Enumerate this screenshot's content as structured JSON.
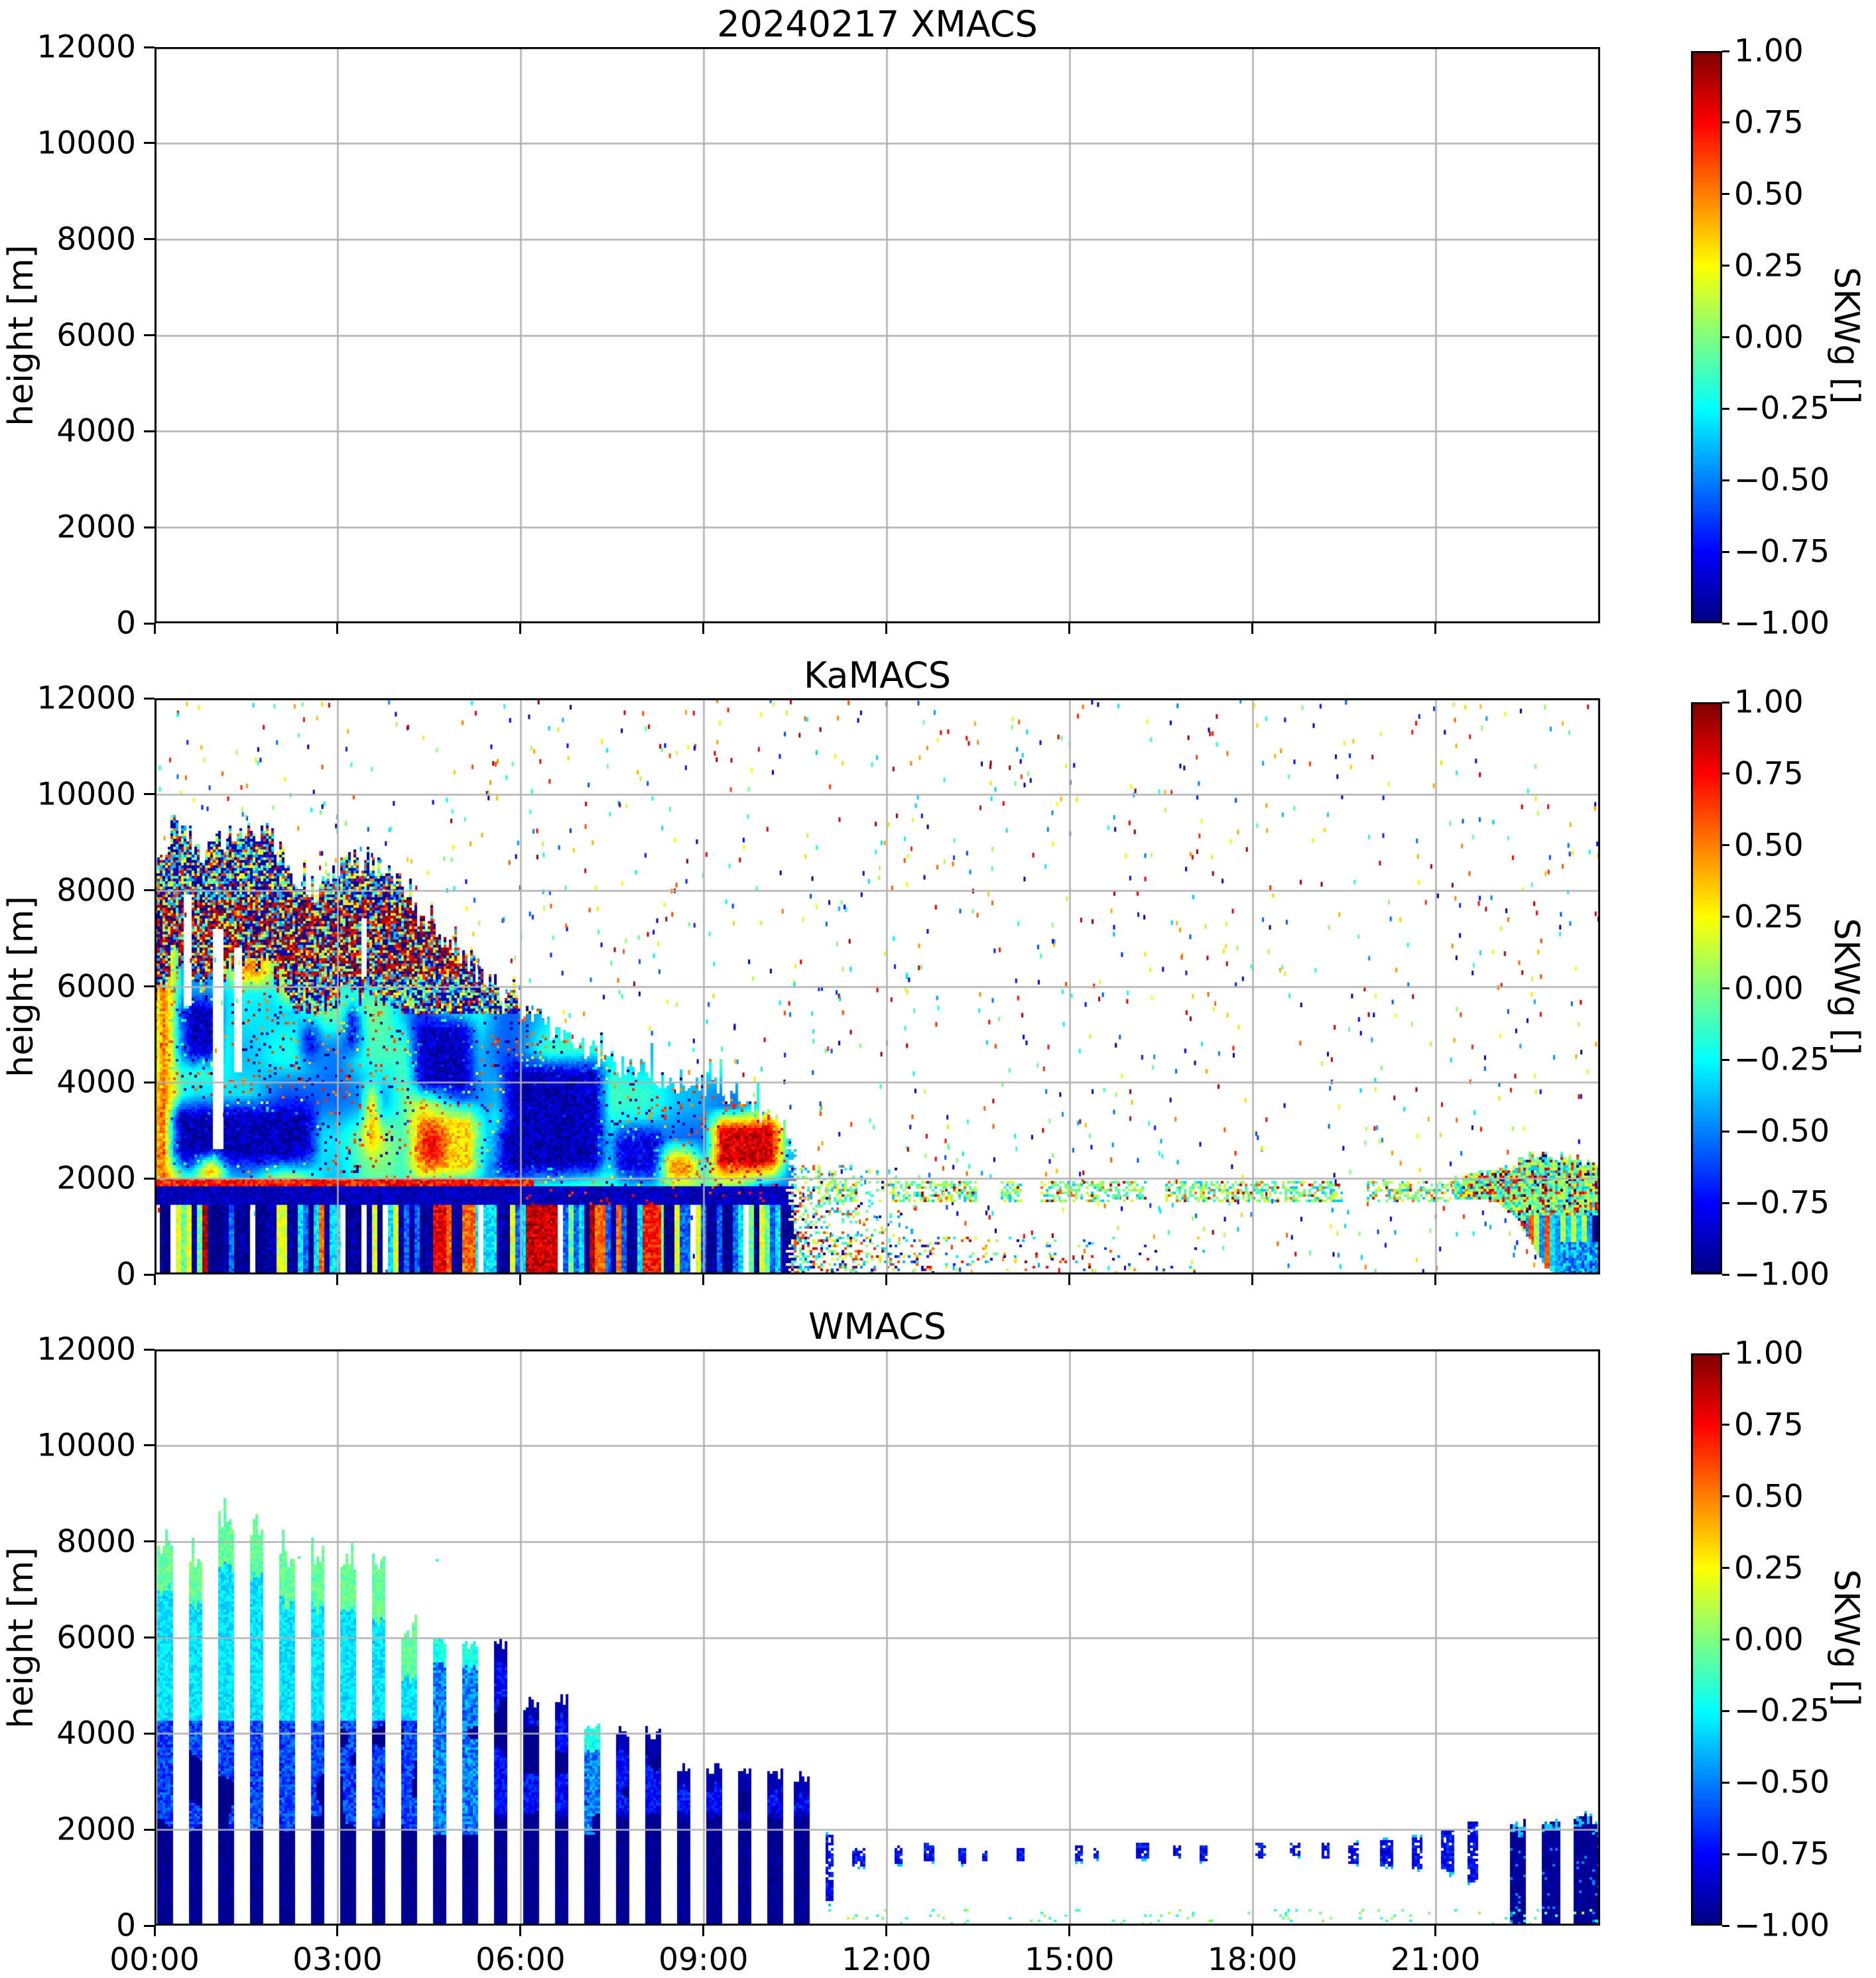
{
  "figure": {
    "background": "#ffffff",
    "grid_color": "#b0b0b0",
    "spine_color": "#000000"
  },
  "panels": [
    {
      "id": "xmacs",
      "title": "20240217 XMACS"
    },
    {
      "id": "kamacs",
      "title": "KaMACS"
    },
    {
      "id": "wmacs",
      "title": "WMACS"
    }
  ],
  "axes": {
    "ylabel": "height [m]",
    "ylim": [
      0,
      12000
    ],
    "y_ticks": [
      {
        "label": "12000",
        "value": 12000
      },
      {
        "label": "10000",
        "value": 10000
      },
      {
        "label": "8000",
        "value": 8000
      },
      {
        "label": "6000",
        "value": 6000
      },
      {
        "label": "4000",
        "value": 4000
      },
      {
        "label": "2000",
        "value": 2000
      },
      {
        "label": "0",
        "value": 0
      }
    ],
    "xlim_hours": [
      0,
      23.7
    ],
    "x_ticks": [
      {
        "label": "00:00",
        "hour": 0
      },
      {
        "label": "03:00",
        "hour": 3
      },
      {
        "label": "06:00",
        "hour": 6
      },
      {
        "label": "09:00",
        "hour": 9
      },
      {
        "label": "12:00",
        "hour": 12
      },
      {
        "label": "15:00",
        "hour": 15
      },
      {
        "label": "18:00",
        "hour": 18
      },
      {
        "label": "21:00",
        "hour": 21
      }
    ],
    "grid_hours": [
      3,
      6,
      9,
      12,
      15,
      18,
      21
    ],
    "grid_heights": [
      2000,
      4000,
      6000,
      8000,
      10000
    ]
  },
  "colorbar": {
    "label": "SKWg []",
    "cmap": "jet",
    "vmin": -1.0,
    "vmax": 1.0,
    "ticks": [
      {
        "label": "1.00",
        "value": 1.0
      },
      {
        "label": "0.75",
        "value": 0.75
      },
      {
        "label": "0.50",
        "value": 0.5
      },
      {
        "label": "0.25",
        "value": 0.25
      },
      {
        "label": "0.00",
        "value": 0.0
      },
      {
        "label": "−0.25",
        "value": -0.25
      },
      {
        "label": "−0.50",
        "value": -0.5
      },
      {
        "label": "−0.75",
        "value": -0.75
      },
      {
        "label": "−1.00",
        "value": -1.0
      }
    ]
  },
  "chart_data": [
    {
      "id": "xmacs",
      "type": "heatmap",
      "title": "20240217 XMACS",
      "ylabel": "height [m]",
      "ylim": [
        0,
        12000
      ],
      "xlim_hours": [
        0,
        23.7
      ],
      "colorbar_label": "SKWg []",
      "clim": [
        -1,
        1
      ],
      "empty": true,
      "note": "no radar echoes recorded; blank panel with grid only"
    },
    {
      "id": "kamacs",
      "type": "heatmap",
      "title": "KaMACS",
      "ylabel": "height [m]",
      "ylim": [
        0,
        12000
      ],
      "xlim_hours": [
        0,
        23.7
      ],
      "colorbar_label": "SKWg []",
      "clim": [
        -1,
        1
      ],
      "cloud": {
        "t1": 10.45,
        "echo_top_profile_m": [
          [
            0,
            8300
          ],
          [
            0.35,
            9400
          ],
          [
            0.8,
            8800
          ],
          [
            1.3,
            9150
          ],
          [
            1.8,
            9250
          ],
          [
            2.3,
            8300
          ],
          [
            2.7,
            7950
          ],
          [
            3.05,
            8650
          ],
          [
            3.6,
            8550
          ],
          [
            4.05,
            8000
          ],
          [
            4.35,
            7450
          ],
          [
            4.8,
            7000
          ],
          [
            5.25,
            6350
          ],
          [
            5.8,
            5700
          ],
          [
            6.3,
            5300
          ],
          [
            7.0,
            4700
          ],
          [
            7.8,
            4300
          ],
          [
            8.6,
            4000
          ],
          [
            9.3,
            3800
          ],
          [
            9.9,
            3500
          ],
          [
            10.45,
            2800
          ]
        ],
        "speckle_base_min_m": 5400,
        "speckle_depth_m": 2700,
        "speckle_t1": 6.6,
        "red_band_m": [
          6200,
          7800
        ]
      },
      "white_gaps": [
        [
          0.5,
          0.62,
          5600,
          7900
        ],
        [
          0.95,
          1.12,
          2600,
          7200
        ],
        [
          1.32,
          1.42,
          4200,
          6800
        ],
        [
          3.38,
          3.5,
          6200,
          7400
        ],
        [
          5.3,
          5.55,
          6600,
          8200
        ]
      ],
      "blobs": [
        [
          0.0,
          0.3,
          0,
          8200,
          0.6
        ],
        [
          0.45,
          1.05,
          4400,
          5700,
          -0.95
        ],
        [
          0.3,
          2.6,
          2300,
          3500,
          -0.95
        ],
        [
          0.75,
          1.1,
          1900,
          2400,
          0.5
        ],
        [
          1.25,
          1.85,
          6100,
          7100,
          0.55
        ],
        [
          2.1,
          2.6,
          5700,
          6400,
          0.45
        ],
        [
          2.45,
          2.65,
          4500,
          5200,
          -0.9
        ],
        [
          3.15,
          3.35,
          4700,
          5600,
          -0.9
        ],
        [
          3.5,
          3.62,
          2600,
          3900,
          0.65
        ],
        [
          4.25,
          5.2,
          3800,
          5300,
          -0.95
        ],
        [
          4.2,
          5.3,
          2000,
          3400,
          0.42
        ],
        [
          4.35,
          4.75,
          2300,
          3100,
          0.8
        ],
        [
          5.55,
          6.1,
          2000,
          3100,
          -0.75
        ],
        [
          5.75,
          7.35,
          2100,
          4400,
          -0.95
        ],
        [
          7.55,
          8.3,
          2000,
          3000,
          -0.85
        ],
        [
          7.9,
          9.05,
          500,
          1600,
          0.75
        ],
        [
          8.35,
          8.9,
          1900,
          2600,
          0.5
        ],
        [
          9.15,
          10.25,
          2100,
          3250,
          0.97
        ]
      ],
      "melting_band": {
        "h0": 1450,
        "h1": 1850,
        "v": -0.88,
        "t1": 10.45
      },
      "melting_line": {
        "h0": 1850,
        "h1": 2000,
        "v": 0.72,
        "t1": 6.2
      },
      "sub_band_stripes": {
        "h1": 1450,
        "t1": 10.45,
        "palette": [
          -1,
          -0.92,
          -0.55,
          -0.3,
          -0.05,
          0.2,
          0.55,
          0.9
        ],
        "weights": [
          0.26,
          0.16,
          0.16,
          0.13,
          0.11,
          0.08,
          0.06,
          0.04
        ],
        "white_prob": 0.05
      },
      "stripe_columns": [
        [
          4.55,
          4.78,
          0.8
        ],
        [
          5.05,
          5.25,
          0.55
        ],
        [
          5.4,
          5.62,
          -0.3
        ],
        [
          6.1,
          6.62,
          0.85
        ],
        [
          8.0,
          8.3,
          0.7
        ]
      ],
      "green_layer": {
        "h0": 1550,
        "h1": 1980,
        "density": 0.55,
        "segments": [
          [
            10.9,
            11.5
          ],
          [
            12.05,
            13.45
          ],
          [
            13.9,
            14.2
          ],
          [
            14.55,
            16.25
          ],
          [
            16.6,
            19.45
          ],
          [
            19.9,
            21.35
          ]
        ]
      },
      "decay_remnant": {
        "t0": 10.45,
        "t1": 12.7,
        "h1": 2300,
        "density": 0.35
      },
      "ground_speckle": {
        "t0": 10.45,
        "t1": 17.6,
        "h1": 800,
        "density": 0.22
      },
      "sparse_speckle_count": 1500,
      "end_blob": {
        "t0": 21.35,
        "t1": 23.7,
        "top_m": [
          [
            21.35,
            1980
          ],
          [
            22.0,
            2120
          ],
          [
            22.55,
            2520
          ],
          [
            23.0,
            2450
          ],
          [
            23.7,
            2350
          ]
        ],
        "bot_m": [
          [
            21.35,
            1580
          ],
          [
            22.0,
            1520
          ],
          [
            22.35,
            1150
          ],
          [
            22.8,
            150
          ],
          [
            22.95,
            0
          ],
          [
            23.7,
            0
          ]
        ],
        "stripe_below_m": 1250
      }
    },
    {
      "id": "wmacs",
      "type": "heatmap",
      "title": "WMACS",
      "ylabel": "height [m]",
      "ylim": [
        0,
        12000
      ],
      "xlim_hours": [
        0,
        23.7
      ],
      "colorbar_label": "SKWg []",
      "clim": [
        -1,
        1
      ],
      "bar_width_hours": 0.21,
      "navy_top_m": 2080,
      "bars": [
        [
          0.07,
          7900,
          "full"
        ],
        [
          0.57,
          7500,
          "full"
        ],
        [
          1.07,
          8350,
          "full"
        ],
        [
          1.57,
          8250,
          "full"
        ],
        [
          2.07,
          7600,
          "full"
        ],
        [
          2.57,
          7500,
          "full"
        ],
        [
          3.07,
          7400,
          "full"
        ],
        [
          3.57,
          7250,
          "full"
        ],
        [
          4.07,
          6050,
          "full"
        ],
        [
          4.57,
          5950,
          "bc"
        ],
        [
          5.07,
          5880,
          "bc"
        ],
        [
          5.57,
          5900,
          "nt"
        ],
        [
          6.07,
          4650,
          "nt"
        ],
        [
          6.57,
          4720,
          "nt"
        ],
        [
          7.07,
          4150,
          "bc"
        ],
        [
          7.57,
          4100,
          "nt"
        ],
        [
          8.07,
          4000,
          "nt"
        ],
        [
          8.57,
          3320,
          "nt"
        ],
        [
          9.07,
          3260,
          "nt"
        ],
        [
          9.57,
          3210,
          "nt"
        ],
        [
          10.07,
          3160,
          "nt"
        ],
        [
          10.5,
          3110,
          "nt"
        ]
      ],
      "mini_blobs": [
        [
          11.05,
          500,
          1900,
          0.08
        ],
        [
          11.55,
          1250,
          1600,
          0.14
        ],
        [
          12.2,
          1300,
          1650,
          0.1
        ],
        [
          12.7,
          1350,
          1700,
          0.16
        ],
        [
          13.25,
          1300,
          1600,
          0.08
        ],
        [
          13.6,
          1350,
          1550,
          0.06
        ],
        [
          14.2,
          1350,
          1600,
          0.1
        ],
        [
          15.15,
          1350,
          1650,
          0.1
        ],
        [
          15.45,
          1400,
          1600,
          0.05
        ],
        [
          16.2,
          1400,
          1700,
          0.14
        ],
        [
          16.75,
          1400,
          1650,
          0.08
        ],
        [
          17.2,
          1350,
          1650,
          0.1
        ],
        [
          18.15,
          1400,
          1700,
          0.12
        ],
        [
          18.7,
          1450,
          1750,
          0.1
        ],
        [
          19.2,
          1400,
          1700,
          0.08
        ],
        [
          19.65,
          1300,
          1750,
          0.14
        ],
        [
          20.2,
          1250,
          1800,
          0.14
        ],
        [
          20.7,
          1200,
          1850,
          0.16
        ],
        [
          21.2,
          1100,
          2000,
          0.18
        ],
        [
          21.6,
          900,
          2150,
          0.14
        ]
      ],
      "end_bars": [
        [
          22.25,
          2150,
          0.2
        ],
        [
          22.75,
          2250,
          0.28
        ],
        [
          23.28,
          2300,
          0.26
        ],
        [
          23.6,
          2150,
          0.18
        ]
      ],
      "high_specks": [
        [
          2.35,
          7650
        ],
        [
          4.65,
          7600
        ],
        [
          1.15,
          8500
        ]
      ],
      "ground_speckle": {
        "t0": 11.0,
        "t1": 23.7,
        "h1": 400,
        "density": 0.06
      }
    }
  ]
}
